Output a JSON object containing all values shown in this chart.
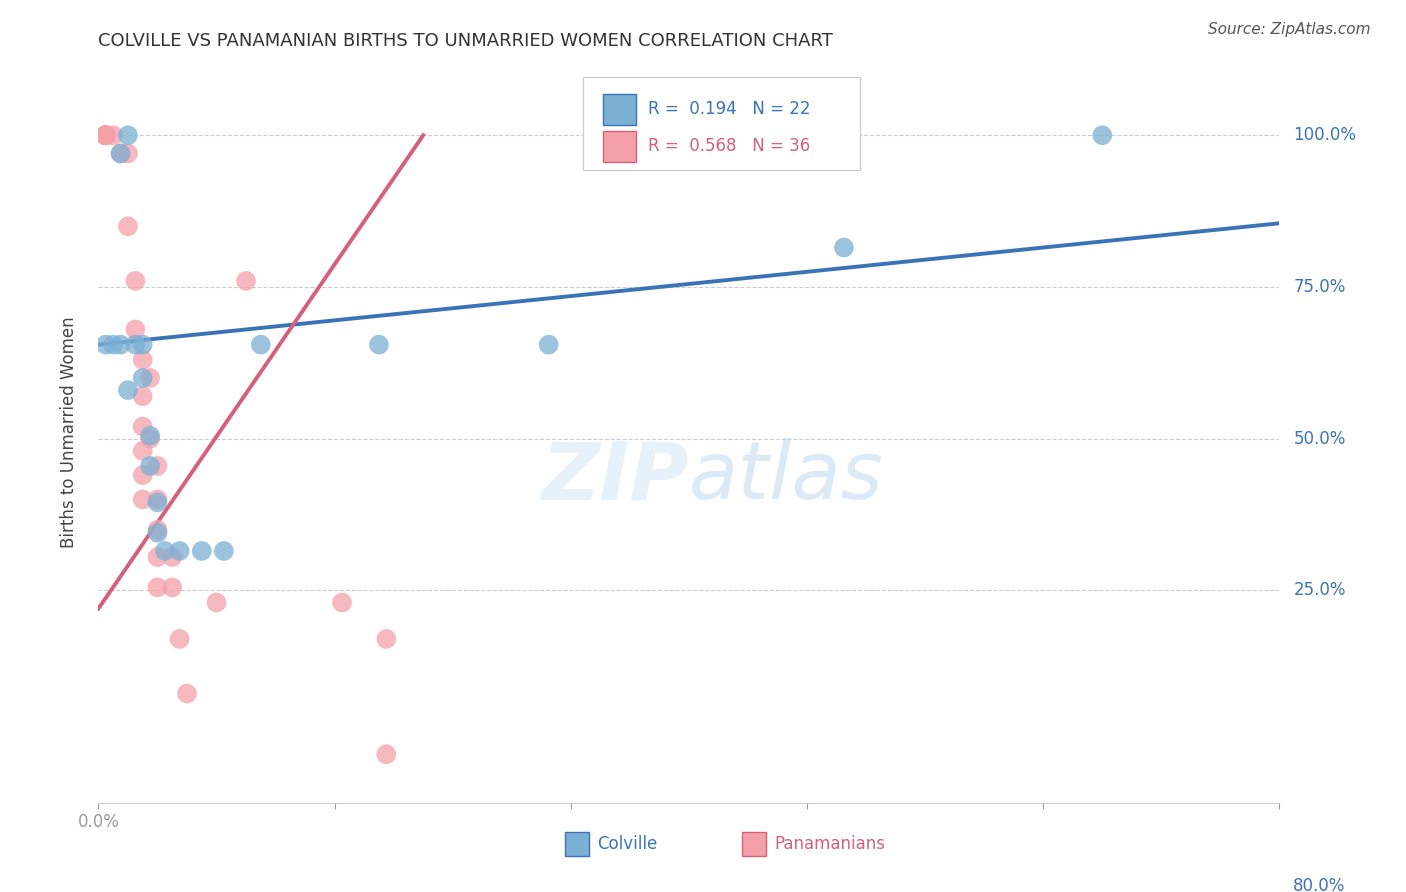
{
  "title": "COLVILLE VS PANAMANIAN BIRTHS TO UNMARRIED WOMEN CORRELATION CHART",
  "source": "Source: ZipAtlas.com",
  "ylabel": "Births to Unmarried Women",
  "ytick_labels": [
    "25.0%",
    "50.0%",
    "75.0%",
    "100.0%"
  ],
  "ytick_values": [
    0.25,
    0.5,
    0.75,
    1.0
  ],
  "xlim": [
    0.0,
    0.8
  ],
  "ylim": [
    -0.1,
    1.12
  ],
  "colville_color": "#7BAFD4",
  "panamanian_color": "#F4A0A8",
  "colville_line_color": "#3B73B9",
  "panamanian_line_color": "#D4607A",
  "colville_points": [
    [
      0.005,
      0.655
    ],
    [
      0.01,
      0.655
    ],
    [
      0.015,
      0.97
    ],
    [
      0.015,
      0.655
    ],
    [
      0.02,
      1.0
    ],
    [
      0.02,
      0.58
    ],
    [
      0.025,
      0.655
    ],
    [
      0.03,
      0.655
    ],
    [
      0.03,
      0.6
    ],
    [
      0.035,
      0.505
    ],
    [
      0.035,
      0.455
    ],
    [
      0.04,
      0.395
    ],
    [
      0.04,
      0.345
    ],
    [
      0.045,
      0.315
    ],
    [
      0.055,
      0.315
    ],
    [
      0.07,
      0.315
    ],
    [
      0.085,
      0.315
    ],
    [
      0.11,
      0.655
    ],
    [
      0.19,
      0.655
    ],
    [
      0.305,
      0.655
    ],
    [
      0.505,
      0.815
    ],
    [
      0.68,
      1.0
    ]
  ],
  "panamanian_points": [
    [
      0.005,
      1.0
    ],
    [
      0.005,
      1.0
    ],
    [
      0.005,
      1.0
    ],
    [
      0.005,
      1.0
    ],
    [
      0.005,
      1.0
    ],
    [
      0.005,
      1.0
    ],
    [
      0.005,
      1.0
    ],
    [
      0.005,
      1.0
    ],
    [
      0.01,
      1.0
    ],
    [
      0.015,
      0.97
    ],
    [
      0.02,
      0.97
    ],
    [
      0.02,
      0.85
    ],
    [
      0.025,
      0.76
    ],
    [
      0.025,
      0.68
    ],
    [
      0.03,
      0.63
    ],
    [
      0.03,
      0.57
    ],
    [
      0.03,
      0.52
    ],
    [
      0.03,
      0.48
    ],
    [
      0.03,
      0.44
    ],
    [
      0.03,
      0.4
    ],
    [
      0.035,
      0.6
    ],
    [
      0.035,
      0.5
    ],
    [
      0.04,
      0.455
    ],
    [
      0.04,
      0.4
    ],
    [
      0.04,
      0.35
    ],
    [
      0.04,
      0.305
    ],
    [
      0.04,
      0.255
    ],
    [
      0.05,
      0.305
    ],
    [
      0.05,
      0.255
    ],
    [
      0.08,
      0.23
    ],
    [
      0.1,
      0.76
    ],
    [
      0.165,
      0.23
    ],
    [
      0.195,
      0.17
    ],
    [
      0.195,
      -0.02
    ],
    [
      0.055,
      0.17
    ],
    [
      0.06,
      0.08
    ]
  ],
  "colville_trendline": [
    [
      0.0,
      0.655
    ],
    [
      0.8,
      0.855
    ]
  ],
  "panamanian_trendline": [
    [
      0.0,
      0.22
    ],
    [
      0.22,
      1.0
    ]
  ]
}
